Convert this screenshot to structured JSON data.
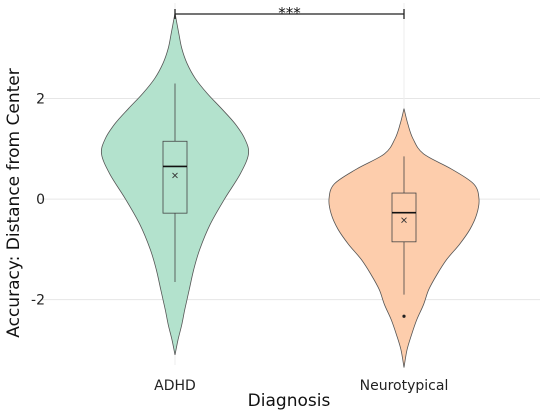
{
  "chart_data": {
    "type": "violin",
    "xlabel": "Diagnosis",
    "ylabel": "Accuracy: Distance from Center",
    "ylim": [
      -3.3,
      3.9
    ],
    "yticks": [
      -2,
      0,
      2
    ],
    "ytick_labels": [
      "-2",
      "0",
      "2"
    ],
    "grid": true,
    "categories": [
      "ADHD",
      "Neurotypical"
    ],
    "significance": {
      "from": "ADHD",
      "to": "Neurotypical",
      "label": "***"
    },
    "groups": [
      {
        "name": "ADHD",
        "color": "#b3e2cd",
        "range": [
          -3.1,
          3.7
        ],
        "whisker_low": -1.65,
        "q1": -0.28,
        "median": 0.65,
        "q3": 1.15,
        "whisker_high": 2.3,
        "mean": 0.47,
        "outliers": [],
        "density": [
          [
            -3.1,
            0.0
          ],
          [
            -2.8,
            0.04
          ],
          [
            -2.5,
            0.09
          ],
          [
            -2.2,
            0.13
          ],
          [
            -1.8,
            0.19
          ],
          [
            -1.4,
            0.25
          ],
          [
            -1.0,
            0.33
          ],
          [
            -0.5,
            0.47
          ],
          [
            0.0,
            0.66
          ],
          [
            0.5,
            0.87
          ],
          [
            0.9,
            0.98
          ],
          [
            1.2,
            0.93
          ],
          [
            1.5,
            0.8
          ],
          [
            1.8,
            0.62
          ],
          [
            2.1,
            0.43
          ],
          [
            2.4,
            0.27
          ],
          [
            2.7,
            0.16
          ],
          [
            3.0,
            0.09
          ],
          [
            3.3,
            0.05
          ],
          [
            3.7,
            0.0
          ]
        ]
      },
      {
        "name": "Neurotypical",
        "color": "#fdcdac",
        "range": [
          -3.35,
          1.8
        ],
        "whisker_low": -1.9,
        "q1": -0.85,
        "median": -0.27,
        "q3": 0.12,
        "whisker_high": 0.85,
        "mean": -0.42,
        "outliers": [
          -2.33
        ],
        "density": [
          [
            -3.35,
            0.0
          ],
          [
            -3.0,
            0.04
          ],
          [
            -2.7,
            0.1
          ],
          [
            -2.4,
            0.17
          ],
          [
            -2.1,
            0.26
          ],
          [
            -1.8,
            0.33
          ],
          [
            -1.5,
            0.44
          ],
          [
            -1.2,
            0.57
          ],
          [
            -0.9,
            0.74
          ],
          [
            -0.6,
            0.88
          ],
          [
            -0.3,
            0.97
          ],
          [
            0.0,
            1.0
          ],
          [
            0.3,
            0.93
          ],
          [
            0.6,
            0.63
          ],
          [
            0.9,
            0.26
          ],
          [
            1.2,
            0.12
          ],
          [
            1.5,
            0.05
          ],
          [
            1.8,
            0.0
          ]
        ]
      }
    ]
  }
}
